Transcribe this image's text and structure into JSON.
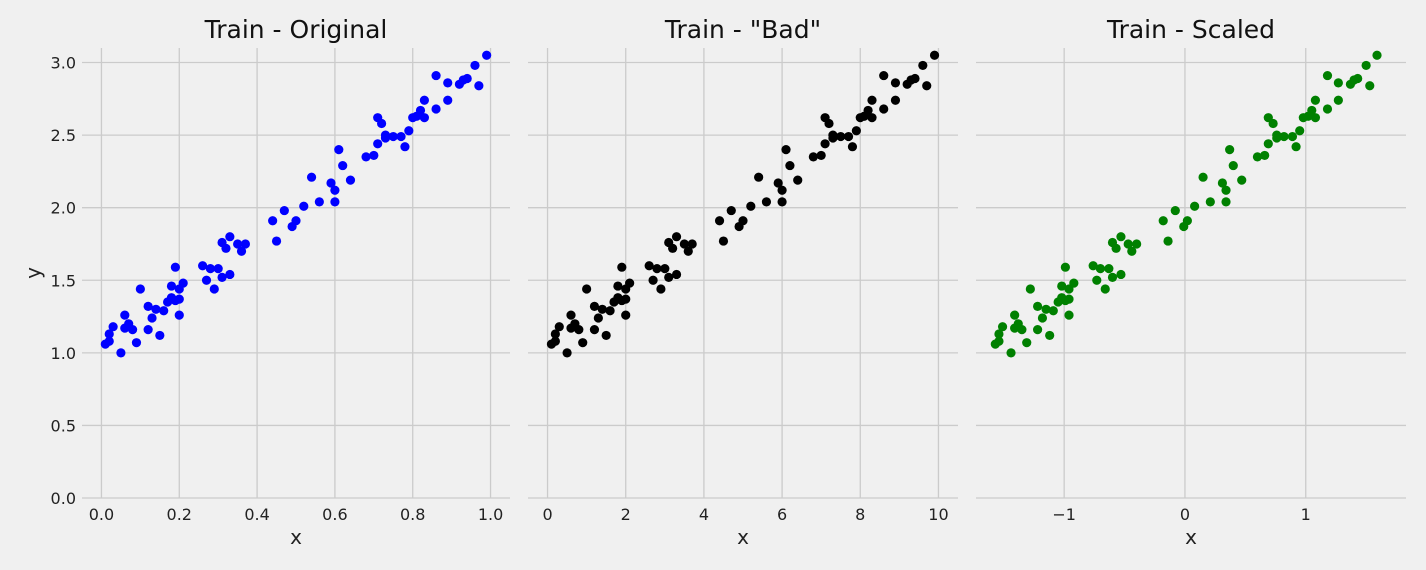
{
  "chart_data": [
    {
      "type": "scatter",
      "title": "Train - Original",
      "xlabel": "x",
      "ylabel": "y",
      "color": "#0000ff",
      "xlim": [
        -0.05,
        1.05
      ],
      "ylim": [
        0.0,
        3.1
      ],
      "xticks": [
        0.0,
        0.2,
        0.4,
        0.6,
        0.8,
        1.0
      ],
      "xtick_labels": [
        "0.0",
        "0.2",
        "0.4",
        "0.6",
        "0.8",
        "1.0"
      ],
      "yticks": [
        0.0,
        0.5,
        1.0,
        1.5,
        2.0,
        2.5,
        3.0
      ],
      "ytick_labels": [
        "0.0",
        "0.5",
        "1.0",
        "1.5",
        "2.0",
        "2.5",
        "3.0"
      ],
      "grid": true,
      "points": [
        [
          0.01,
          1.06
        ],
        [
          0.02,
          1.08
        ],
        [
          0.02,
          1.13
        ],
        [
          0.03,
          1.18
        ],
        [
          0.05,
          1.0
        ],
        [
          0.06,
          1.26
        ],
        [
          0.06,
          1.17
        ],
        [
          0.07,
          1.2
        ],
        [
          0.08,
          1.16
        ],
        [
          0.09,
          1.07
        ],
        [
          0.1,
          1.44
        ],
        [
          0.12,
          1.32
        ],
        [
          0.12,
          1.16
        ],
        [
          0.13,
          1.24
        ],
        [
          0.14,
          1.3
        ],
        [
          0.15,
          1.12
        ],
        [
          0.16,
          1.29
        ],
        [
          0.17,
          1.35
        ],
        [
          0.18,
          1.38
        ],
        [
          0.18,
          1.46
        ],
        [
          0.19,
          1.59
        ],
        [
          0.19,
          1.36
        ],
        [
          0.2,
          1.44
        ],
        [
          0.2,
          1.26
        ],
        [
          0.2,
          1.37
        ],
        [
          0.21,
          1.48
        ],
        [
          0.26,
          1.6
        ],
        [
          0.27,
          1.5
        ],
        [
          0.28,
          1.58
        ],
        [
          0.29,
          1.44
        ],
        [
          0.3,
          1.58
        ],
        [
          0.31,
          1.52
        ],
        [
          0.31,
          1.76
        ],
        [
          0.32,
          1.72
        ],
        [
          0.33,
          1.8
        ],
        [
          0.33,
          1.54
        ],
        [
          0.35,
          1.75
        ],
        [
          0.36,
          1.7
        ],
        [
          0.37,
          1.75
        ],
        [
          0.44,
          1.91
        ],
        [
          0.45,
          1.77
        ],
        [
          0.47,
          1.98
        ],
        [
          0.49,
          1.87
        ],
        [
          0.5,
          1.91
        ],
        [
          0.52,
          2.01
        ],
        [
          0.54,
          2.21
        ],
        [
          0.56,
          2.04
        ],
        [
          0.59,
          2.17
        ],
        [
          0.6,
          2.04
        ],
        [
          0.6,
          2.12
        ],
        [
          0.61,
          2.4
        ],
        [
          0.62,
          2.29
        ],
        [
          0.64,
          2.19
        ],
        [
          0.68,
          2.35
        ],
        [
          0.7,
          2.36
        ],
        [
          0.71,
          2.44
        ],
        [
          0.71,
          2.62
        ],
        [
          0.72,
          2.58
        ],
        [
          0.73,
          2.48
        ],
        [
          0.73,
          2.5
        ],
        [
          0.75,
          2.49
        ],
        [
          0.77,
          2.49
        ],
        [
          0.78,
          2.42
        ],
        [
          0.79,
          2.53
        ],
        [
          0.8,
          2.62
        ],
        [
          0.81,
          2.63
        ],
        [
          0.82,
          2.67
        ],
        [
          0.83,
          2.74
        ],
        [
          0.83,
          2.62
        ],
        [
          0.86,
          2.68
        ],
        [
          0.86,
          2.91
        ],
        [
          0.89,
          2.86
        ],
        [
          0.89,
          2.74
        ],
        [
          0.92,
          2.85
        ],
        [
          0.93,
          2.88
        ],
        [
          0.94,
          2.89
        ],
        [
          0.96,
          2.98
        ],
        [
          0.97,
          2.84
        ],
        [
          0.99,
          3.05
        ]
      ]
    },
    {
      "type": "scatter",
      "title": "Train - \"Bad\"",
      "xlabel": "x",
      "ylabel": "",
      "color": "#000000",
      "xlim": [
        -0.5,
        10.5
      ],
      "ylim": [
        0.0,
        3.1
      ],
      "xticks": [
        0,
        2,
        4,
        6,
        8,
        10
      ],
      "xtick_labels": [
        "0",
        "2",
        "4",
        "6",
        "8",
        "10"
      ],
      "grid": true,
      "points": [
        [
          0.1,
          1.06
        ],
        [
          0.2,
          1.08
        ],
        [
          0.2,
          1.13
        ],
        [
          0.3,
          1.18
        ],
        [
          0.5,
          1.0
        ],
        [
          0.6,
          1.26
        ],
        [
          0.6,
          1.17
        ],
        [
          0.7,
          1.2
        ],
        [
          0.8,
          1.16
        ],
        [
          0.9,
          1.07
        ],
        [
          1.0,
          1.44
        ],
        [
          1.2,
          1.32
        ],
        [
          1.2,
          1.16
        ],
        [
          1.3,
          1.24
        ],
        [
          1.4,
          1.3
        ],
        [
          1.5,
          1.12
        ],
        [
          1.6,
          1.29
        ],
        [
          1.7,
          1.35
        ],
        [
          1.8,
          1.38
        ],
        [
          1.8,
          1.46
        ],
        [
          1.9,
          1.59
        ],
        [
          1.9,
          1.36
        ],
        [
          2.0,
          1.44
        ],
        [
          2.0,
          1.26
        ],
        [
          2.0,
          1.37
        ],
        [
          2.1,
          1.48
        ],
        [
          2.6,
          1.6
        ],
        [
          2.7,
          1.5
        ],
        [
          2.8,
          1.58
        ],
        [
          2.9,
          1.44
        ],
        [
          3.0,
          1.58
        ],
        [
          3.1,
          1.52
        ],
        [
          3.1,
          1.76
        ],
        [
          3.2,
          1.72
        ],
        [
          3.3,
          1.8
        ],
        [
          3.3,
          1.54
        ],
        [
          3.5,
          1.75
        ],
        [
          3.6,
          1.7
        ],
        [
          3.7,
          1.75
        ],
        [
          4.4,
          1.91
        ],
        [
          4.5,
          1.77
        ],
        [
          4.7,
          1.98
        ],
        [
          4.9,
          1.87
        ],
        [
          5.0,
          1.91
        ],
        [
          5.2,
          2.01
        ],
        [
          5.4,
          2.21
        ],
        [
          5.6,
          2.04
        ],
        [
          5.9,
          2.17
        ],
        [
          6.0,
          2.04
        ],
        [
          6.0,
          2.12
        ],
        [
          6.1,
          2.4
        ],
        [
          6.2,
          2.29
        ],
        [
          6.4,
          2.19
        ],
        [
          6.8,
          2.35
        ],
        [
          7.0,
          2.36
        ],
        [
          7.1,
          2.44
        ],
        [
          7.1,
          2.62
        ],
        [
          7.2,
          2.58
        ],
        [
          7.3,
          2.48
        ],
        [
          7.3,
          2.5
        ],
        [
          7.5,
          2.49
        ],
        [
          7.7,
          2.49
        ],
        [
          7.8,
          2.42
        ],
        [
          7.9,
          2.53
        ],
        [
          8.0,
          2.62
        ],
        [
          8.1,
          2.63
        ],
        [
          8.2,
          2.67
        ],
        [
          8.3,
          2.74
        ],
        [
          8.3,
          2.62
        ],
        [
          8.6,
          2.68
        ],
        [
          8.6,
          2.91
        ],
        [
          8.9,
          2.86
        ],
        [
          8.9,
          2.74
        ],
        [
          9.2,
          2.85
        ],
        [
          9.3,
          2.88
        ],
        [
          9.4,
          2.89
        ],
        [
          9.6,
          2.98
        ],
        [
          9.7,
          2.84
        ],
        [
          9.9,
          3.05
        ]
      ]
    },
    {
      "type": "scatter",
      "title": "Train - Scaled",
      "xlabel": "x",
      "ylabel": "",
      "color": "#008000",
      "xlim": [
        -1.73,
        1.83
      ],
      "ylim": [
        0.0,
        3.1
      ],
      "xticks": [
        -1,
        0,
        1
      ],
      "xtick_labels": [
        "−1",
        "0",
        "1"
      ],
      "grid": true,
      "points": [
        [
          -1.57,
          1.06
        ],
        [
          -1.54,
          1.08
        ],
        [
          -1.54,
          1.13
        ],
        [
          -1.51,
          1.18
        ],
        [
          -1.44,
          1.0
        ],
        [
          -1.41,
          1.26
        ],
        [
          -1.41,
          1.17
        ],
        [
          -1.38,
          1.2
        ],
        [
          -1.35,
          1.16
        ],
        [
          -1.31,
          1.07
        ],
        [
          -1.28,
          1.44
        ],
        [
          -1.22,
          1.32
        ],
        [
          -1.22,
          1.16
        ],
        [
          -1.18,
          1.24
        ],
        [
          -1.15,
          1.3
        ],
        [
          -1.12,
          1.12
        ],
        [
          -1.09,
          1.29
        ],
        [
          -1.05,
          1.35
        ],
        [
          -1.02,
          1.38
        ],
        [
          -1.02,
          1.46
        ],
        [
          -0.99,
          1.59
        ],
        [
          -0.99,
          1.36
        ],
        [
          -0.96,
          1.44
        ],
        [
          -0.96,
          1.26
        ],
        [
          -0.96,
          1.37
        ],
        [
          -0.92,
          1.48
        ],
        [
          -0.76,
          1.6
        ],
        [
          -0.73,
          1.5
        ],
        [
          -0.7,
          1.58
        ],
        [
          -0.66,
          1.44
        ],
        [
          -0.63,
          1.58
        ],
        [
          -0.6,
          1.52
        ],
        [
          -0.6,
          1.76
        ],
        [
          -0.57,
          1.72
        ],
        [
          -0.53,
          1.8
        ],
        [
          -0.53,
          1.54
        ],
        [
          -0.47,
          1.75
        ],
        [
          -0.44,
          1.7
        ],
        [
          -0.4,
          1.75
        ],
        [
          -0.18,
          1.91
        ],
        [
          -0.14,
          1.77
        ],
        [
          -0.08,
          1.98
        ],
        [
          -0.01,
          1.87
        ],
        [
          0.02,
          1.91
        ],
        [
          0.08,
          2.01
        ],
        [
          0.15,
          2.21
        ],
        [
          0.21,
          2.04
        ],
        [
          0.31,
          2.17
        ],
        [
          0.34,
          2.04
        ],
        [
          0.34,
          2.12
        ],
        [
          0.37,
          2.4
        ],
        [
          0.4,
          2.29
        ],
        [
          0.47,
          2.19
        ],
        [
          0.6,
          2.35
        ],
        [
          0.66,
          2.36
        ],
        [
          0.69,
          2.44
        ],
        [
          0.69,
          2.62
        ],
        [
          0.73,
          2.58
        ],
        [
          0.76,
          2.48
        ],
        [
          0.76,
          2.5
        ],
        [
          0.82,
          2.49
        ],
        [
          0.89,
          2.49
        ],
        [
          0.92,
          2.42
        ],
        [
          0.95,
          2.53
        ],
        [
          0.98,
          2.62
        ],
        [
          1.02,
          2.63
        ],
        [
          1.05,
          2.67
        ],
        [
          1.08,
          2.74
        ],
        [
          1.08,
          2.62
        ],
        [
          1.18,
          2.68
        ],
        [
          1.18,
          2.91
        ],
        [
          1.27,
          2.86
        ],
        [
          1.27,
          2.74
        ],
        [
          1.37,
          2.85
        ],
        [
          1.4,
          2.88
        ],
        [
          1.43,
          2.89
        ],
        [
          1.5,
          2.98
        ],
        [
          1.53,
          2.84
        ],
        [
          1.59,
          3.05
        ]
      ]
    }
  ]
}
